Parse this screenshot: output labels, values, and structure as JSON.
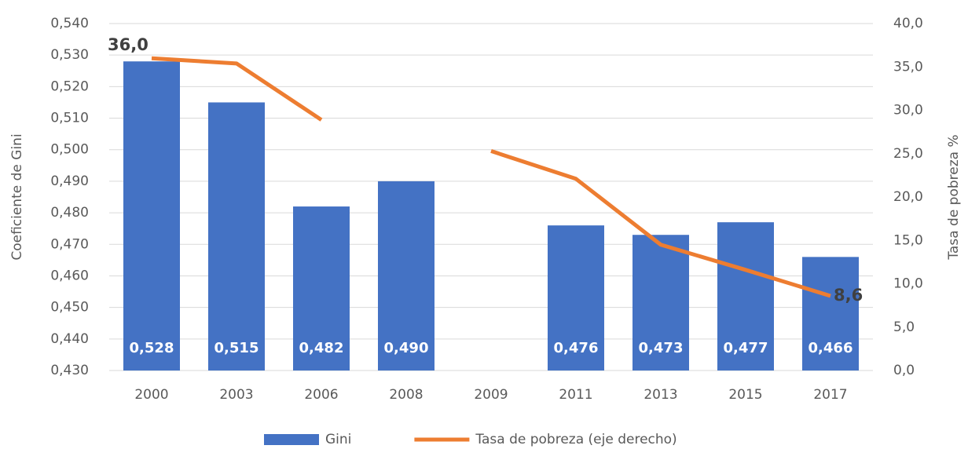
{
  "chart_data": {
    "type": "bar",
    "categories": [
      "2000",
      "2003",
      "2006",
      "2008",
      "2009",
      "2011",
      "2013",
      "2015",
      "2017"
    ],
    "series": [
      {
        "name": "Gini",
        "color": "#4472c4",
        "type": "bar",
        "values": [
          0.528,
          0.515,
          0.482,
          0.49,
          null,
          0.476,
          0.473,
          0.477,
          0.466
        ],
        "value_labels": [
          "0,528",
          "0,515",
          "0,482",
          "0,490",
          null,
          "0,476",
          "0,473",
          "0,477",
          "0,466"
        ]
      },
      {
        "name": "Tasa de pobreza (eje derecho)",
        "color": "#ed7d31",
        "type": "line",
        "axis": "y2",
        "values": [
          36.0,
          35.4,
          28.9,
          null,
          25.3,
          22.1,
          14.5,
          11.6,
          8.6
        ],
        "value_labels": [
          "36,0",
          null,
          null,
          null,
          null,
          null,
          null,
          null,
          "8,6"
        ]
      }
    ],
    "ylabel": "Coeficiente de Gini",
    "y2label": "Tasa de pobreza %",
    "ylim": [
      0.43,
      0.54
    ],
    "yticks": [
      {
        "value": 0.43,
        "label": "0,430"
      },
      {
        "value": 0.44,
        "label": "0,440"
      },
      {
        "value": 0.45,
        "label": "0,450"
      },
      {
        "value": 0.46,
        "label": "0,460"
      },
      {
        "value": 0.47,
        "label": "0,470"
      },
      {
        "value": 0.48,
        "label": "0,480"
      },
      {
        "value": 0.49,
        "label": "0,490"
      },
      {
        "value": 0.5,
        "label": "0,500"
      },
      {
        "value": 0.51,
        "label": "0,510"
      },
      {
        "value": 0.52,
        "label": "0,520"
      },
      {
        "value": 0.53,
        "label": "0,530"
      },
      {
        "value": 0.54,
        "label": "0,540"
      }
    ],
    "y2lim": [
      0,
      40
    ],
    "y2ticks": [
      {
        "value": 0,
        "label": "0,0"
      },
      {
        "value": 5,
        "label": "5,0"
      },
      {
        "value": 10,
        "label": "10,0"
      },
      {
        "value": 15,
        "label": "15,0"
      },
      {
        "value": 20,
        "label": "20,0"
      },
      {
        "value": 25,
        "label": "25,0"
      },
      {
        "value": 30,
        "label": "30,0"
      },
      {
        "value": 35,
        "label": "35,0"
      },
      {
        "value": 40,
        "label": "40,0"
      }
    ],
    "grid": true,
    "legend": "bottom"
  }
}
